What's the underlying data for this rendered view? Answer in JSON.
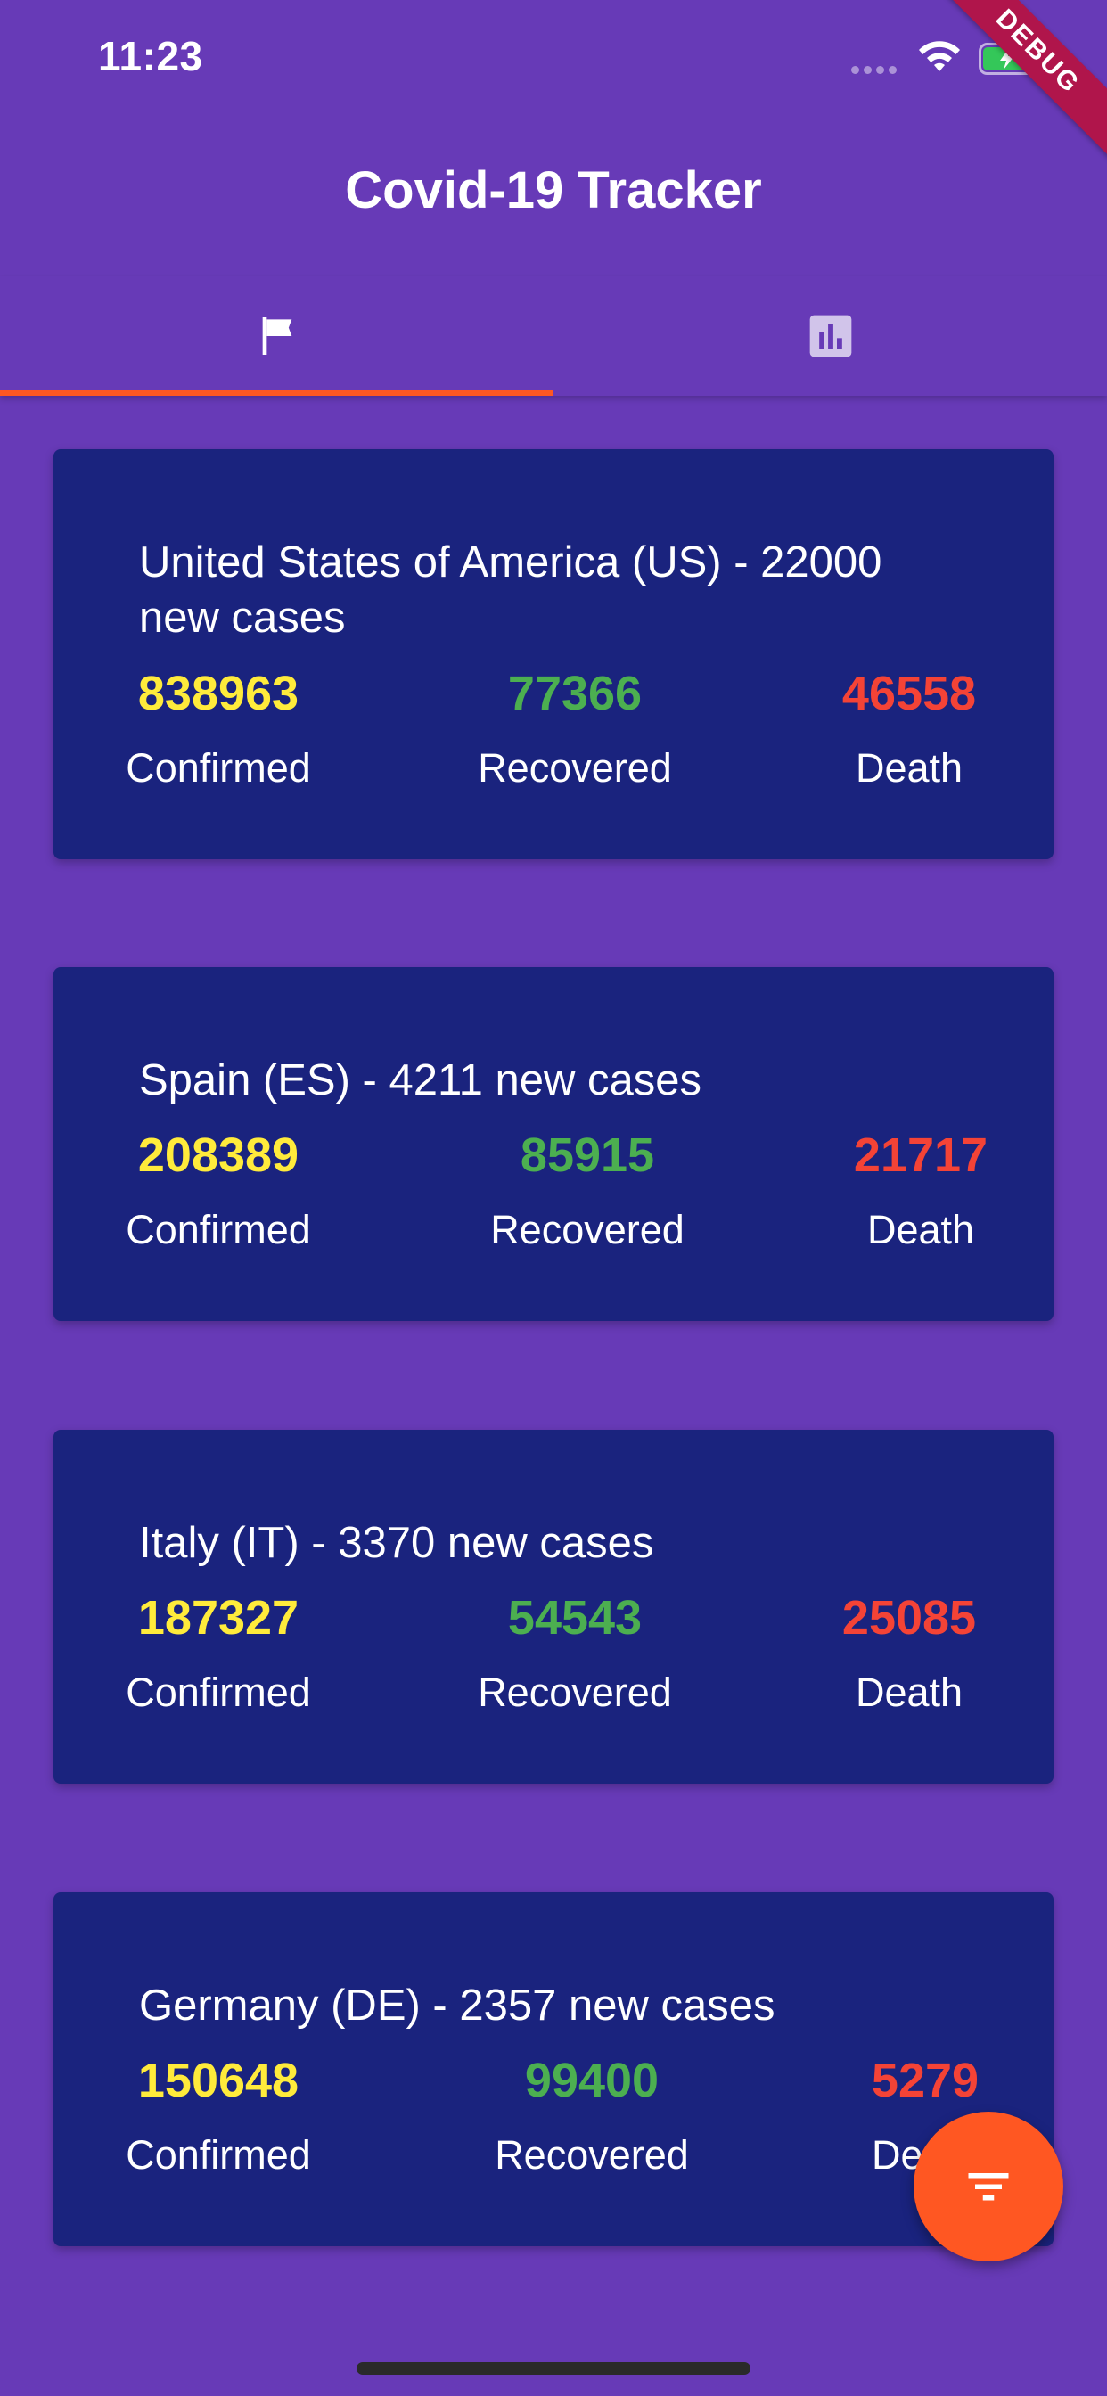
{
  "status_bar": {
    "time": "11:23",
    "debug_label": "DEBUG"
  },
  "app_bar": {
    "title": "Covid-19 Tracker"
  },
  "tabs": [
    {
      "icon": "flag-icon",
      "active": true
    },
    {
      "icon": "bar-chart-icon",
      "active": false
    }
  ],
  "colors": {
    "background": "#673ab7",
    "card": "#1a237e",
    "confirmed": "#ffeb3b",
    "recovered": "#4caf50",
    "death": "#f44336",
    "accent": "#ff5722"
  },
  "countries": [
    {
      "title": "United States of America (US) - 22000 new cases",
      "confirmed": "838963",
      "recovered": "77366",
      "death": "46558",
      "confirmed_label": "Confirmed",
      "recovered_label": "Recovered",
      "death_label": "Death"
    },
    {
      "title": "Spain (ES) - 4211 new cases",
      "confirmed": "208389",
      "recovered": "85915",
      "death": "21717",
      "confirmed_label": "Confirmed",
      "recovered_label": "Recovered",
      "death_label": "Death"
    },
    {
      "title": "Italy (IT) - 3370 new cases",
      "confirmed": "187327",
      "recovered": "54543",
      "death": "25085",
      "confirmed_label": "Confirmed",
      "recovered_label": "Recovered",
      "death_label": "Death"
    },
    {
      "title": "Germany (DE) - 2357 new cases",
      "confirmed": "150648",
      "recovered": "99400",
      "death": "5279",
      "confirmed_label": "Confirmed",
      "recovered_label": "Recovered",
      "death_label": "Death"
    }
  ],
  "fab": {
    "icon": "filter-icon"
  }
}
